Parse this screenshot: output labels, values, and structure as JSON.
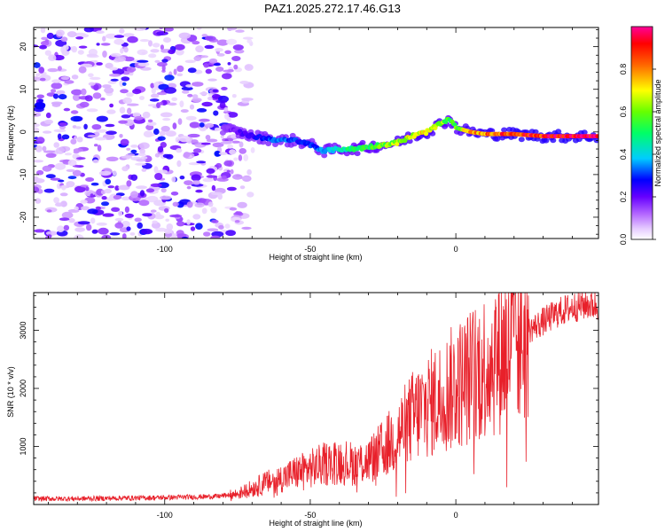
{
  "figure_title": "PAZ1.2025.272.17.46.G13",
  "chart_data": [
    {
      "type": "heatmap",
      "title": "PAZ1.2025.272.17.46.G13",
      "xlabel": "Height of straight line (km)",
      "ylabel": "Frequency (Hz)",
      "xlim": [
        -145,
        49
      ],
      "ylim": [
        -25,
        24.5
      ],
      "xticks": [
        -100,
        -50,
        0
      ],
      "yticks": [
        -20,
        -10,
        0,
        10,
        20
      ],
      "colorbar": {
        "label": "Normalized spectral amplitude",
        "range": [
          0,
          1
        ],
        "ticks": [
          0.0,
          0.2,
          0.4,
          0.6,
          0.8
        ],
        "colormap": [
          "#ffffff",
          "#d9b3ff",
          "#8a00ff",
          "#0000ff",
          "#00ffff",
          "#00ff00",
          "#ffff00",
          "#ff0000",
          "#ff0080"
        ]
      },
      "ridge": {
        "description": "frequency of the dominant spectral ridge vs height",
        "x": [
          -80,
          -75,
          -70,
          -65,
          -60,
          -55,
          -50,
          -45,
          -40,
          -35,
          -30,
          -25,
          -20,
          -15,
          -10,
          -5,
          -2,
          0,
          5,
          10,
          20,
          30,
          40,
          49
        ],
        "y": [
          1,
          0,
          -1,
          -1.5,
          -2,
          -2,
          -3,
          -4.5,
          -4,
          -4,
          -3.5,
          -3,
          -2.5,
          -1,
          0,
          2,
          3,
          1,
          0,
          -0.5,
          -0.5,
          -1,
          -1,
          -1
        ],
        "amplitude": [
          0.15,
          0.2,
          0.25,
          0.3,
          0.35,
          0.3,
          0.3,
          0.35,
          0.45,
          0.5,
          0.55,
          0.6,
          0.65,
          0.7,
          0.72,
          0.65,
          0.55,
          0.6,
          0.75,
          0.82,
          0.9,
          0.93,
          0.96,
          0.98
        ]
      },
      "noise_region": {
        "x_from": -145,
        "x_to": -70,
        "amplitude": "low (0.05-0.25)"
      }
    },
    {
      "type": "line",
      "xlabel": "Height of straight line (km)",
      "ylabel": "SNR (10 * v/v)",
      "xlim": [
        -145,
        49
      ],
      "ylim": [
        0,
        3650
      ],
      "xticks": [
        -100,
        -50,
        0
      ],
      "yticks": [
        1000,
        2000,
        3000
      ],
      "series": [
        {
          "name": "SNR",
          "color": "#e8202a",
          "x": [
            -145,
            -130,
            -115,
            -100,
            -90,
            -82,
            -75,
            -70,
            -65,
            -60,
            -55,
            -50,
            -45,
            -40,
            -35,
            -30,
            -25,
            -20,
            -15,
            -10,
            -5,
            0,
            5,
            10,
            15,
            20,
            25,
            30,
            35,
            40,
            45,
            49
          ],
          "y": [
            100,
            100,
            110,
            120,
            130,
            140,
            180,
            280,
            380,
            450,
            550,
            620,
            700,
            750,
            700,
            750,
            950,
            1200,
            1500,
            1700,
            1850,
            2050,
            2200,
            2400,
            2600,
            2800,
            3000,
            3150,
            3300,
            3400,
            3450,
            3420
          ]
        }
      ]
    }
  ]
}
